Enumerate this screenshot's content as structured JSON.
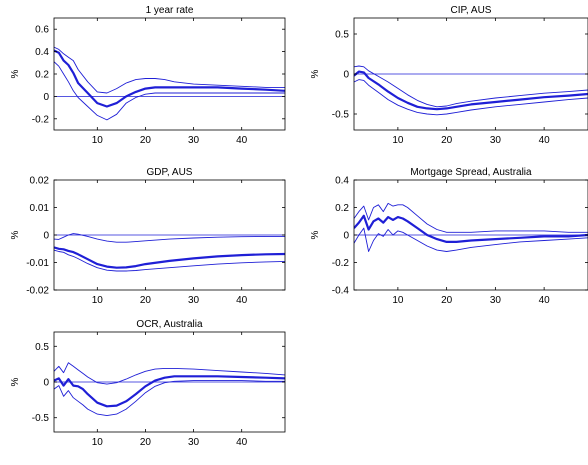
{
  "chart_data": [
    {
      "type": "line",
      "title": "1 year rate",
      "ylabel": "%",
      "xlim": [
        1,
        49
      ],
      "ylim": [
        -0.3,
        0.7
      ],
      "xticks": [
        10,
        20,
        30,
        40
      ],
      "yticks": [
        -0.2,
        0,
        0.2,
        0.4,
        0.6
      ],
      "ytick_labels": [
        "-0.2",
        "0",
        "0.2",
        "0.4",
        "0.6"
      ],
      "zero_line": 0,
      "series": [
        {
          "role": "median",
          "x": [
            1,
            2,
            3,
            4,
            5,
            6,
            8,
            10,
            12,
            14,
            16,
            18,
            20,
            22,
            24,
            26,
            30,
            35,
            40,
            45,
            49
          ],
          "y": [
            0.41,
            0.39,
            0.32,
            0.28,
            0.21,
            0.12,
            0.03,
            -0.06,
            -0.09,
            -0.06,
            0.0,
            0.04,
            0.07,
            0.08,
            0.08,
            0.08,
            0.08,
            0.08,
            0.07,
            0.06,
            0.05
          ]
        },
        {
          "role": "upper",
          "x": [
            1,
            2,
            3,
            4,
            5,
            6,
            8,
            10,
            12,
            14,
            16,
            18,
            20,
            22,
            24,
            26,
            30,
            35,
            40,
            45,
            49
          ],
          "y": [
            0.44,
            0.42,
            0.38,
            0.35,
            0.32,
            0.24,
            0.13,
            0.04,
            0.03,
            0.07,
            0.12,
            0.15,
            0.16,
            0.16,
            0.15,
            0.13,
            0.11,
            0.1,
            0.09,
            0.08,
            0.08
          ]
        },
        {
          "role": "lower",
          "x": [
            1,
            2,
            3,
            4,
            5,
            6,
            8,
            10,
            12,
            14,
            16,
            18,
            20,
            22,
            24,
            26,
            30,
            35,
            40,
            45,
            49
          ],
          "y": [
            0.31,
            0.27,
            0.2,
            0.13,
            0.05,
            -0.01,
            -0.09,
            -0.17,
            -0.21,
            -0.16,
            -0.06,
            -0.01,
            0.02,
            0.03,
            0.03,
            0.03,
            0.03,
            0.03,
            0.03,
            0.03,
            0.03
          ]
        }
      ]
    },
    {
      "type": "line",
      "title": "CIP, AUS",
      "ylabel": "%",
      "xlim": [
        1,
        49
      ],
      "ylim": [
        -0.7,
        0.7
      ],
      "xticks": [
        10,
        20,
        30,
        40
      ],
      "yticks": [
        -0.5,
        0,
        0.5
      ],
      "ytick_labels": [
        "-0.5",
        "0",
        "0.5"
      ],
      "zero_line": 0,
      "series": [
        {
          "role": "median",
          "x": [
            1,
            2,
            3,
            4,
            6,
            8,
            10,
            12,
            14,
            16,
            18,
            20,
            22,
            25,
            30,
            35,
            40,
            45,
            49
          ],
          "y": [
            -0.02,
            0.03,
            0.02,
            -0.05,
            -0.13,
            -0.22,
            -0.3,
            -0.36,
            -0.41,
            -0.43,
            -0.44,
            -0.43,
            -0.41,
            -0.38,
            -0.35,
            -0.32,
            -0.29,
            -0.27,
            -0.25
          ]
        },
        {
          "role": "upper",
          "x": [
            1,
            2,
            3,
            4,
            6,
            8,
            10,
            12,
            14,
            16,
            18,
            20,
            22,
            25,
            30,
            35,
            40,
            45,
            49
          ],
          "y": [
            0.09,
            0.1,
            0.09,
            0.04,
            -0.03,
            -0.1,
            -0.18,
            -0.26,
            -0.33,
            -0.38,
            -0.41,
            -0.4,
            -0.37,
            -0.34,
            -0.3,
            -0.27,
            -0.24,
            -0.22,
            -0.2
          ]
        },
        {
          "role": "lower",
          "x": [
            1,
            2,
            3,
            4,
            6,
            8,
            10,
            12,
            14,
            16,
            18,
            20,
            22,
            25,
            30,
            35,
            40,
            45,
            49
          ],
          "y": [
            -0.1,
            -0.07,
            -0.08,
            -0.14,
            -0.23,
            -0.32,
            -0.39,
            -0.44,
            -0.48,
            -0.5,
            -0.51,
            -0.5,
            -0.48,
            -0.45,
            -0.41,
            -0.38,
            -0.35,
            -0.32,
            -0.3
          ]
        }
      ]
    },
    {
      "type": "line",
      "title": "GDP, AUS",
      "ylabel": "%",
      "xlim": [
        1,
        49
      ],
      "ylim": [
        -0.02,
        0.02
      ],
      "xticks": [
        10,
        20,
        30,
        40
      ],
      "yticks": [
        -0.02,
        -0.01,
        0,
        0.01,
        0.02
      ],
      "ytick_labels": [
        "-0.02",
        "-0.01",
        "0",
        "0.01",
        "0.02"
      ],
      "zero_line": 0,
      "series": [
        {
          "role": "median",
          "x": [
            1,
            2,
            3,
            4,
            5,
            6,
            8,
            10,
            12,
            14,
            16,
            18,
            20,
            25,
            30,
            35,
            40,
            45,
            49
          ],
          "y": [
            -0.0045,
            -0.005,
            -0.0052,
            -0.0058,
            -0.0062,
            -0.007,
            -0.0088,
            -0.0106,
            -0.0115,
            -0.0119,
            -0.0118,
            -0.0113,
            -0.0106,
            -0.0094,
            -0.0085,
            -0.0078,
            -0.0073,
            -0.007,
            -0.0069
          ]
        },
        {
          "role": "upper",
          "x": [
            1,
            2,
            3,
            4,
            5,
            6,
            8,
            10,
            12,
            14,
            16,
            18,
            20,
            25,
            30,
            35,
            40,
            45,
            49
          ],
          "y": [
            -0.0015,
            -0.0016,
            -0.0008,
            0.0,
            0.0005,
            0.0003,
            -0.0005,
            -0.0015,
            -0.0022,
            -0.0026,
            -0.0026,
            -0.0024,
            -0.0021,
            -0.0015,
            -0.0011,
            -0.0008,
            -0.0006,
            -0.0005,
            -0.0005
          ]
        },
        {
          "role": "lower",
          "x": [
            1,
            2,
            3,
            4,
            5,
            6,
            8,
            10,
            12,
            14,
            16,
            18,
            20,
            25,
            30,
            35,
            40,
            45,
            49
          ],
          "y": [
            -0.0055,
            -0.006,
            -0.0063,
            -0.0072,
            -0.0078,
            -0.0086,
            -0.0104,
            -0.0119,
            -0.0128,
            -0.0131,
            -0.0131,
            -0.0129,
            -0.0126,
            -0.0119,
            -0.0112,
            -0.0106,
            -0.0101,
            -0.0098,
            -0.0096
          ]
        }
      ]
    },
    {
      "type": "line",
      "title": "Mortgage Spread, Australia",
      "ylabel": "%",
      "xlim": [
        1,
        49
      ],
      "ylim": [
        -0.4,
        0.4
      ],
      "xticks": [
        10,
        20,
        30,
        40
      ],
      "yticks": [
        -0.4,
        -0.2,
        0,
        0.2,
        0.4
      ],
      "ytick_labels": [
        "-0.4",
        "-0.2",
        "0",
        "0.2",
        "0.4"
      ],
      "zero_line": 0,
      "series": [
        {
          "role": "median",
          "x": [
            1,
            2,
            3,
            4,
            5,
            6,
            7,
            8,
            9,
            10,
            11,
            12,
            14,
            16,
            18,
            20,
            22,
            25,
            30,
            35,
            40,
            45,
            49
          ],
          "y": [
            0.05,
            0.09,
            0.14,
            0.04,
            0.1,
            0.12,
            0.09,
            0.13,
            0.11,
            0.13,
            0.12,
            0.1,
            0.05,
            0.0,
            -0.03,
            -0.05,
            -0.05,
            -0.04,
            -0.03,
            -0.02,
            -0.01,
            -0.01,
            0.0
          ]
        },
        {
          "role": "upper",
          "x": [
            1,
            2,
            3,
            4,
            5,
            6,
            7,
            8,
            9,
            10,
            11,
            12,
            14,
            16,
            18,
            20,
            22,
            25,
            30,
            35,
            40,
            45,
            49
          ],
          "y": [
            0.12,
            0.17,
            0.21,
            0.11,
            0.2,
            0.22,
            0.17,
            0.23,
            0.21,
            0.22,
            0.22,
            0.2,
            0.14,
            0.08,
            0.04,
            0.02,
            0.02,
            0.02,
            0.03,
            0.03,
            0.03,
            0.02,
            0.02
          ]
        },
        {
          "role": "lower",
          "x": [
            1,
            2,
            3,
            4,
            5,
            6,
            7,
            8,
            9,
            10,
            11,
            12,
            14,
            16,
            18,
            20,
            22,
            25,
            30,
            35,
            40,
            45,
            49
          ],
          "y": [
            -0.06,
            0.0,
            0.05,
            -0.12,
            -0.04,
            0.01,
            -0.01,
            0.04,
            0.0,
            0.03,
            0.02,
            0.0,
            -0.04,
            -0.08,
            -0.11,
            -0.12,
            -0.11,
            -0.09,
            -0.07,
            -0.05,
            -0.04,
            -0.03,
            -0.02
          ]
        }
      ]
    },
    {
      "type": "line",
      "title": "OCR, Australia",
      "ylabel": "%",
      "xlim": [
        1,
        49
      ],
      "ylim": [
        -0.7,
        0.7
      ],
      "xticks": [
        10,
        20,
        30,
        40
      ],
      "yticks": [
        -0.5,
        0,
        0.5
      ],
      "ytick_labels": [
        "-0.5",
        "0",
        "0.5"
      ],
      "zero_line": 0,
      "series": [
        {
          "role": "median",
          "x": [
            1,
            2,
            3,
            4,
            5,
            6,
            7,
            8,
            10,
            12,
            14,
            16,
            18,
            20,
            22,
            24,
            26,
            30,
            35,
            40,
            45,
            49
          ],
          "y": [
            0.02,
            0.05,
            -0.05,
            0.04,
            -0.05,
            -0.06,
            -0.1,
            -0.17,
            -0.29,
            -0.34,
            -0.33,
            -0.27,
            -0.17,
            -0.06,
            0.02,
            0.06,
            0.08,
            0.08,
            0.08,
            0.07,
            0.06,
            0.05
          ]
        },
        {
          "role": "upper",
          "x": [
            1,
            2,
            3,
            4,
            5,
            6,
            7,
            8,
            10,
            12,
            14,
            16,
            18,
            20,
            22,
            24,
            26,
            30,
            35,
            40,
            45,
            49
          ],
          "y": [
            0.15,
            0.22,
            0.13,
            0.27,
            0.22,
            0.17,
            0.12,
            0.07,
            -0.01,
            -0.03,
            -0.01,
            0.04,
            0.1,
            0.15,
            0.18,
            0.19,
            0.19,
            0.18,
            0.16,
            0.14,
            0.12,
            0.1
          ]
        },
        {
          "role": "lower",
          "x": [
            1,
            2,
            3,
            4,
            5,
            6,
            7,
            8,
            10,
            12,
            14,
            16,
            18,
            20,
            22,
            24,
            26,
            30,
            35,
            40,
            45,
            49
          ],
          "y": [
            -0.1,
            -0.05,
            -0.2,
            -0.12,
            -0.22,
            -0.27,
            -0.32,
            -0.38,
            -0.45,
            -0.47,
            -0.45,
            -0.38,
            -0.27,
            -0.15,
            -0.06,
            -0.01,
            0.01,
            0.02,
            0.02,
            0.02,
            0.01,
            0.01
          ]
        }
      ]
    }
  ]
}
